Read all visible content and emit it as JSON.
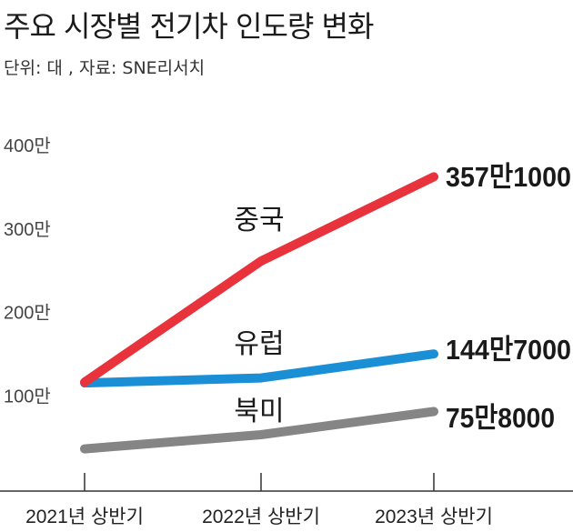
{
  "title": "주요 시장별 전기차 인도량 변화",
  "subtitle": "단위: 대 , 자료: SNE리서치",
  "chart_data": {
    "type": "line",
    "title": "주요 시장별 전기차 인도량 변화",
    "subtitle": "단위: 대 , 자료: SNE리서치",
    "xlabel": "",
    "ylabel": "",
    "categories": [
      "2021년 상반기",
      "2022년 상반기",
      "2023년 상반기"
    ],
    "y_ticks": [
      100,
      200,
      300,
      400
    ],
    "y_tick_labels": [
      "100만",
      "200만",
      "300만",
      "400만"
    ],
    "ylim": [
      0,
      400
    ],
    "y_unit": "만 대",
    "grid": false,
    "series": [
      {
        "name": "중국",
        "values": [
          111,
          256,
          357.1
        ],
        "end_label": "357만1000",
        "color": "#e8323c"
      },
      {
        "name": "유럽",
        "values": [
          110,
          116,
          144.7
        ],
        "end_label": "144만7000",
        "color": "#1a8fd6"
      },
      {
        "name": "북미",
        "values": [
          31,
          48,
          75.8
        ],
        "end_label": "75만8000",
        "color": "#858585"
      }
    ]
  }
}
